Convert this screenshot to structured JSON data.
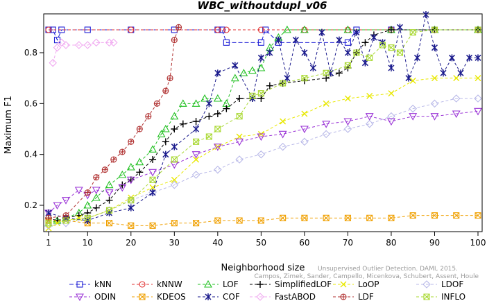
{
  "chart_data": {
    "type": "line",
    "title": "WBC_withoutdupl_v06",
    "xlabel": "Neighborhood size",
    "ylabel": "Maximum F1",
    "xlim": [
      1,
      100
    ],
    "ylim": [
      0.1,
      0.95
    ],
    "xticks": [
      1,
      10,
      20,
      30,
      40,
      50,
      60,
      70,
      80,
      90,
      100
    ],
    "yticks": [
      0.2,
      0.4,
      0.6,
      0.8
    ],
    "grid": false,
    "legend_position": "bottom",
    "caption": "Campos, Zimek, Sander, Campello, Micenkova, Schubert, Assent, Houle",
    "caption_overlay": "Unsupervised Outlier Detection. DAMI, 2015.",
    "series": [
      {
        "name": "kNN",
        "color": "#1f1fd6",
        "marker": "square",
        "dash": "6,3",
        "points": [
          [
            1,
            0.89
          ],
          [
            2,
            0.89
          ],
          [
            3,
            0.85
          ],
          [
            4,
            0.89
          ],
          [
            10,
            0.89
          ],
          [
            20,
            0.89
          ],
          [
            30,
            0.89
          ],
          [
            40,
            0.89
          ],
          [
            41,
            0.89
          ],
          [
            42,
            0.84
          ],
          [
            50,
            0.84
          ],
          [
            51,
            0.89
          ],
          [
            54,
            0.84
          ],
          [
            70,
            0.84
          ],
          [
            72,
            0.89
          ],
          [
            80,
            0.89
          ],
          [
            90,
            0.89
          ],
          [
            100,
            0.89
          ]
        ]
      },
      {
        "name": "kNNW",
        "color": "#e03030",
        "marker": "circle",
        "dash": "4,3",
        "points": [
          [
            1,
            0.89
          ],
          [
            20,
            0.89
          ],
          [
            40,
            0.89
          ],
          [
            42,
            0.89
          ],
          [
            50,
            0.89
          ],
          [
            60,
            0.89
          ],
          [
            70,
            0.89
          ],
          [
            80,
            0.89
          ],
          [
            90,
            0.89
          ],
          [
            100,
            0.89
          ]
        ]
      },
      {
        "name": "LOF",
        "color": "#22c022",
        "marker": "triangle-up",
        "dash": "4,3",
        "points": [
          [
            1,
            0.13
          ],
          [
            3,
            0.14
          ],
          [
            5,
            0.15
          ],
          [
            8,
            0.17
          ],
          [
            10,
            0.2
          ],
          [
            12,
            0.23
          ],
          [
            15,
            0.28
          ],
          [
            18,
            0.32
          ],
          [
            20,
            0.35
          ],
          [
            22,
            0.37
          ],
          [
            25,
            0.42
          ],
          [
            27,
            0.48
          ],
          [
            28,
            0.5
          ],
          [
            30,
            0.55
          ],
          [
            32,
            0.6
          ],
          [
            35,
            0.6
          ],
          [
            37,
            0.62
          ],
          [
            40,
            0.62
          ],
          [
            42,
            0.6
          ],
          [
            44,
            0.7
          ],
          [
            46,
            0.72
          ],
          [
            48,
            0.73
          ],
          [
            50,
            0.74
          ],
          [
            52,
            0.82
          ],
          [
            54,
            0.86
          ],
          [
            56,
            0.89
          ],
          [
            60,
            0.89
          ],
          [
            70,
            0.89
          ],
          [
            80,
            0.89
          ],
          [
            90,
            0.89
          ],
          [
            100,
            0.89
          ]
        ]
      },
      {
        "name": "SimplifiedLOF",
        "color": "#000000",
        "marker": "plus",
        "dash": "4,3",
        "points": [
          [
            1,
            0.15
          ],
          [
            3,
            0.14
          ],
          [
            5,
            0.15
          ],
          [
            8,
            0.16
          ],
          [
            10,
            0.17
          ],
          [
            12,
            0.19
          ],
          [
            15,
            0.22
          ],
          [
            18,
            0.28
          ],
          [
            20,
            0.3
          ],
          [
            22,
            0.33
          ],
          [
            25,
            0.38
          ],
          [
            28,
            0.45
          ],
          [
            30,
            0.5
          ],
          [
            32,
            0.52
          ],
          [
            35,
            0.53
          ],
          [
            38,
            0.55
          ],
          [
            40,
            0.56
          ],
          [
            42,
            0.58
          ],
          [
            45,
            0.62
          ],
          [
            48,
            0.62
          ],
          [
            50,
            0.62
          ],
          [
            52,
            0.67
          ],
          [
            55,
            0.68
          ],
          [
            60,
            0.69
          ],
          [
            65,
            0.7
          ],
          [
            68,
            0.72
          ],
          [
            70,
            0.74
          ],
          [
            72,
            0.8
          ],
          [
            74,
            0.84
          ],
          [
            76,
            0.87
          ],
          [
            80,
            0.89
          ],
          [
            90,
            0.89
          ],
          [
            100,
            0.89
          ]
        ]
      },
      {
        "name": "LoOP",
        "color": "#e8e800",
        "marker": "cross",
        "dash": "4,3",
        "points": [
          [
            1,
            0.11
          ],
          [
            3,
            0.13
          ],
          [
            5,
            0.14
          ],
          [
            8,
            0.15
          ],
          [
            10,
            0.15
          ],
          [
            15,
            0.18
          ],
          [
            20,
            0.23
          ],
          [
            25,
            0.27
          ],
          [
            30,
            0.3
          ],
          [
            35,
            0.38
          ],
          [
            40,
            0.43
          ],
          [
            45,
            0.47
          ],
          [
            50,
            0.48
          ],
          [
            55,
            0.53
          ],
          [
            60,
            0.56
          ],
          [
            65,
            0.6
          ],
          [
            70,
            0.62
          ],
          [
            75,
            0.63
          ],
          [
            80,
            0.64
          ],
          [
            85,
            0.69
          ],
          [
            90,
            0.7
          ],
          [
            95,
            0.7
          ],
          [
            100,
            0.7
          ]
        ]
      },
      {
        "name": "LDOF",
        "color": "#b8b8e8",
        "marker": "diamond",
        "dash": "4,3",
        "points": [
          [
            1,
            0.12
          ],
          [
            5,
            0.13
          ],
          [
            10,
            0.15
          ],
          [
            15,
            0.18
          ],
          [
            20,
            0.22
          ],
          [
            25,
            0.25
          ],
          [
            30,
            0.28
          ],
          [
            35,
            0.32
          ],
          [
            40,
            0.34
          ],
          [
            45,
            0.38
          ],
          [
            50,
            0.4
          ],
          [
            55,
            0.43
          ],
          [
            60,
            0.45
          ],
          [
            65,
            0.48
          ],
          [
            70,
            0.5
          ],
          [
            75,
            0.52
          ],
          [
            80,
            0.55
          ],
          [
            85,
            0.58
          ],
          [
            90,
            0.6
          ],
          [
            95,
            0.62
          ],
          [
            100,
            0.62
          ]
        ]
      },
      {
        "name": "ODIN",
        "color": "#9a33d6",
        "marker": "triangle-down",
        "dash": "4,3",
        "points": [
          [
            1,
            0.17
          ],
          [
            3,
            0.2
          ],
          [
            5,
            0.22
          ],
          [
            8,
            0.26
          ],
          [
            10,
            0.24
          ],
          [
            12,
            0.26
          ],
          [
            15,
            0.25
          ],
          [
            18,
            0.27
          ],
          [
            20,
            0.3
          ],
          [
            25,
            0.33
          ],
          [
            30,
            0.36
          ],
          [
            35,
            0.4
          ],
          [
            40,
            0.43
          ],
          [
            45,
            0.45
          ],
          [
            50,
            0.47
          ],
          [
            55,
            0.48
          ],
          [
            60,
            0.5
          ],
          [
            65,
            0.52
          ],
          [
            70,
            0.53
          ],
          [
            75,
            0.55
          ],
          [
            80,
            0.53
          ],
          [
            85,
            0.55
          ],
          [
            90,
            0.55
          ],
          [
            95,
            0.56
          ],
          [
            100,
            0.57
          ]
        ]
      },
      {
        "name": "KDEOS",
        "color": "#f0a000",
        "marker": "square-x",
        "dash": "4,3",
        "points": [
          [
            1,
            0.14
          ],
          [
            5,
            0.14
          ],
          [
            10,
            0.13
          ],
          [
            15,
            0.13
          ],
          [
            20,
            0.12
          ],
          [
            25,
            0.12
          ],
          [
            30,
            0.13
          ],
          [
            35,
            0.13
          ],
          [
            40,
            0.14
          ],
          [
            45,
            0.14
          ],
          [
            50,
            0.14
          ],
          [
            55,
            0.15
          ],
          [
            60,
            0.15
          ],
          [
            65,
            0.15
          ],
          [
            70,
            0.15
          ],
          [
            75,
            0.15
          ],
          [
            80,
            0.15
          ],
          [
            85,
            0.16
          ],
          [
            90,
            0.16
          ],
          [
            95,
            0.16
          ],
          [
            100,
            0.16
          ]
        ]
      },
      {
        "name": "COF",
        "color": "#1a1a8c",
        "marker": "asterisk",
        "dash": "4,3",
        "points": [
          [
            1,
            0.17
          ],
          [
            5,
            0.15
          ],
          [
            10,
            0.14
          ],
          [
            15,
            0.17
          ],
          [
            20,
            0.19
          ],
          [
            25,
            0.25
          ],
          [
            28,
            0.4
          ],
          [
            30,
            0.43
          ],
          [
            35,
            0.5
          ],
          [
            38,
            0.6
          ],
          [
            40,
            0.72
          ],
          [
            44,
            0.75
          ],
          [
            48,
            0.62
          ],
          [
            50,
            0.78
          ],
          [
            52,
            0.8
          ],
          [
            54,
            0.85
          ],
          [
            56,
            0.7
          ],
          [
            58,
            0.85
          ],
          [
            60,
            0.8
          ],
          [
            62,
            0.74
          ],
          [
            64,
            0.88
          ],
          [
            66,
            0.72
          ],
          [
            68,
            0.85
          ],
          [
            70,
            0.8
          ],
          [
            72,
            0.88
          ],
          [
            74,
            0.76
          ],
          [
            76,
            0.86
          ],
          [
            78,
            0.84
          ],
          [
            80,
            0.74
          ],
          [
            82,
            0.9
          ],
          [
            84,
            0.7
          ],
          [
            86,
            0.78
          ],
          [
            88,
            0.95
          ],
          [
            90,
            0.82
          ],
          [
            92,
            0.72
          ],
          [
            94,
            0.78
          ],
          [
            96,
            0.72
          ],
          [
            98,
            0.78
          ],
          [
            100,
            0.78
          ]
        ]
      },
      {
        "name": "FastABOD",
        "color": "#f0a8f0",
        "marker": "diamond",
        "dash": "4,3",
        "points": [
          [
            2,
            0.76
          ],
          [
            3,
            0.82
          ],
          [
            4,
            0.84
          ],
          [
            5,
            0.83
          ],
          [
            8,
            0.83
          ],
          [
            10,
            0.83
          ],
          [
            12,
            0.84
          ],
          [
            15,
            0.84
          ],
          [
            16,
            0.84
          ]
        ]
      },
      {
        "name": "LDF",
        "color": "#b03030",
        "marker": "circle-plus",
        "dash": "4,3",
        "points": [
          [
            1,
            0.15
          ],
          [
            5,
            0.16
          ],
          [
            10,
            0.25
          ],
          [
            12,
            0.31
          ],
          [
            14,
            0.34
          ],
          [
            16,
            0.38
          ],
          [
            18,
            0.41
          ],
          [
            20,
            0.45
          ],
          [
            22,
            0.5
          ],
          [
            24,
            0.55
          ],
          [
            26,
            0.6
          ],
          [
            28,
            0.65
          ],
          [
            29,
            0.7
          ],
          [
            30,
            0.85
          ],
          [
            31,
            0.9
          ]
        ]
      },
      {
        "name": "INFLO",
        "color": "#a8d830",
        "marker": "square-x",
        "dash": "4,3",
        "points": [
          [
            1,
            0.13
          ],
          [
            5,
            0.14
          ],
          [
            10,
            0.15
          ],
          [
            15,
            0.18
          ],
          [
            20,
            0.22
          ],
          [
            25,
            0.3
          ],
          [
            30,
            0.38
          ],
          [
            35,
            0.45
          ],
          [
            38,
            0.47
          ],
          [
            40,
            0.5
          ],
          [
            45,
            0.55
          ],
          [
            48,
            0.63
          ],
          [
            50,
            0.64
          ],
          [
            55,
            0.68
          ],
          [
            60,
            0.7
          ],
          [
            65,
            0.72
          ],
          [
            70,
            0.75
          ],
          [
            72,
            0.8
          ],
          [
            75,
            0.78
          ],
          [
            78,
            0.83
          ],
          [
            80,
            0.82
          ],
          [
            82,
            0.8
          ],
          [
            85,
            0.88
          ],
          [
            90,
            0.89
          ],
          [
            100,
            0.89
          ]
        ]
      }
    ]
  }
}
